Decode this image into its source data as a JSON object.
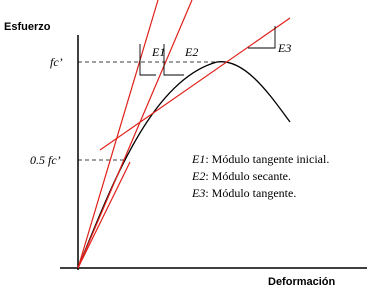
{
  "axes": {
    "y_label": "Esfuerzo",
    "x_label": "Deformación"
  },
  "levels": {
    "peak": "fc’",
    "half": "0.5 fc’"
  },
  "slopes": [
    "E1",
    "E2",
    "E3"
  ],
  "legend": [
    {
      "key": "E1",
      "text": ": Módulo tangente inicial."
    },
    {
      "key": "E2",
      "text": ": Módulo secante."
    },
    {
      "key": "E3",
      "text": ": Módulo tangente."
    }
  ]
}
